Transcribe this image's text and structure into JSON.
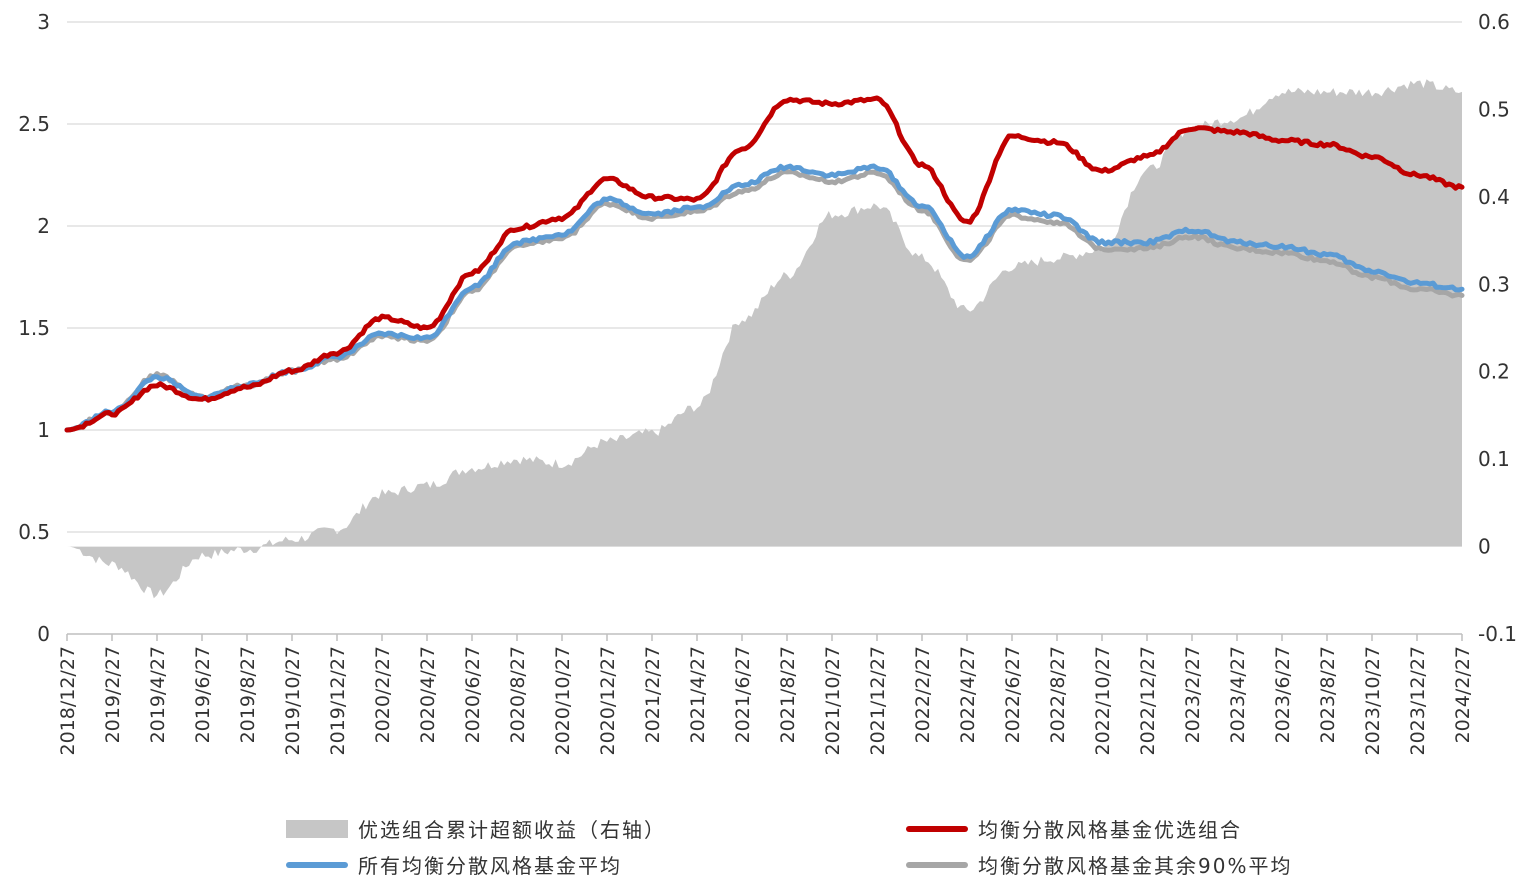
{
  "chart_data": {
    "type": "line",
    "title": "",
    "xlabel": "",
    "ylabel": "",
    "ylim": [
      0,
      3
    ],
    "y2lim": [
      -0.1,
      0.6
    ],
    "yticks": [
      "0",
      "0.5",
      "1",
      "1.5",
      "2",
      "2.5",
      "3"
    ],
    "y2ticks": [
      "-0.1",
      "0",
      "0.1",
      "0.2",
      "0.3",
      "0.4",
      "0.5",
      "0.6"
    ],
    "x": [
      "2018/12/27",
      "2019/2/27",
      "2019/4/27",
      "2019/6/27",
      "2019/8/27",
      "2019/10/27",
      "2019/12/27",
      "2020/2/27",
      "2020/4/27",
      "2020/6/27",
      "2020/8/27",
      "2020/10/27",
      "2020/12/27",
      "2021/2/27",
      "2021/4/27",
      "2021/6/27",
      "2021/8/27",
      "2021/10/27",
      "2021/12/27",
      "2022/2/27",
      "2022/4/27",
      "2022/6/27",
      "2022/8/27",
      "2022/10/27",
      "2022/12/27",
      "2023/2/27",
      "2023/4/27",
      "2023/6/27",
      "2023/8/27",
      "2023/10/27",
      "2023/12/27",
      "2024/2/27"
    ],
    "grid": true,
    "legend_position": "bottom",
    "series": [
      {
        "name": "优选组合累计超额收益（右轴）",
        "axis": "right",
        "kind": "area",
        "color": "#c6c6c6",
        "values": [
          0.0,
          -0.02,
          -0.055,
          -0.01,
          -0.003,
          0.008,
          0.02,
          0.06,
          0.07,
          0.09,
          0.1,
          0.095,
          0.12,
          0.13,
          0.16,
          0.26,
          0.31,
          0.38,
          0.39,
          0.33,
          0.27,
          0.32,
          0.33,
          0.34,
          0.43,
          0.48,
          0.49,
          0.52,
          0.52,
          0.52,
          0.53,
          0.52
        ]
      },
      {
        "name": "均衡分散风格基金优选组合",
        "axis": "left",
        "kind": "line",
        "color": "#c00000",
        "values": [
          1.0,
          1.08,
          1.22,
          1.15,
          1.21,
          1.29,
          1.38,
          1.55,
          1.5,
          1.77,
          1.99,
          2.04,
          2.23,
          2.14,
          2.13,
          2.38,
          2.62,
          2.6,
          2.62,
          2.3,
          2.02,
          2.44,
          2.41,
          2.27,
          2.34,
          2.48,
          2.46,
          2.42,
          2.4,
          2.34,
          2.25,
          2.19
        ]
      },
      {
        "name": "所有均衡分散风格基金平均",
        "axis": "left",
        "kind": "line",
        "color": "#5b9bd5",
        "values": [
          1.0,
          1.09,
          1.26,
          1.16,
          1.22,
          1.29,
          1.36,
          1.47,
          1.45,
          1.7,
          1.92,
          1.96,
          2.13,
          2.06,
          2.09,
          2.2,
          2.29,
          2.25,
          2.29,
          2.1,
          1.85,
          2.08,
          2.05,
          1.92,
          1.92,
          1.98,
          1.92,
          1.9,
          1.86,
          1.78,
          1.72,
          1.69
        ]
      },
      {
        "name": "均衡分散风格基金其余90%平均",
        "axis": "left",
        "kind": "line",
        "color": "#a6a6a6",
        "values": [
          1.0,
          1.09,
          1.27,
          1.16,
          1.22,
          1.29,
          1.35,
          1.46,
          1.44,
          1.68,
          1.9,
          1.94,
          2.11,
          2.04,
          2.07,
          2.17,
          2.26,
          2.22,
          2.26,
          2.08,
          1.83,
          2.05,
          2.02,
          1.89,
          1.89,
          1.95,
          1.89,
          1.87,
          1.83,
          1.75,
          1.69,
          1.66
        ]
      }
    ]
  },
  "legend": [
    {
      "label": "优选组合累计超额收益（右轴）",
      "kind": "area",
      "color": "#c6c6c6"
    },
    {
      "label": "均衡分散风格基金优选组合",
      "kind": "line",
      "color": "#c00000"
    },
    {
      "label": "所有均衡分散风格基金平均",
      "kind": "line",
      "color": "#5b9bd5"
    },
    {
      "label": "均衡分散风格基金其余90%平均",
      "kind": "line",
      "color": "#a6a6a6"
    }
  ]
}
